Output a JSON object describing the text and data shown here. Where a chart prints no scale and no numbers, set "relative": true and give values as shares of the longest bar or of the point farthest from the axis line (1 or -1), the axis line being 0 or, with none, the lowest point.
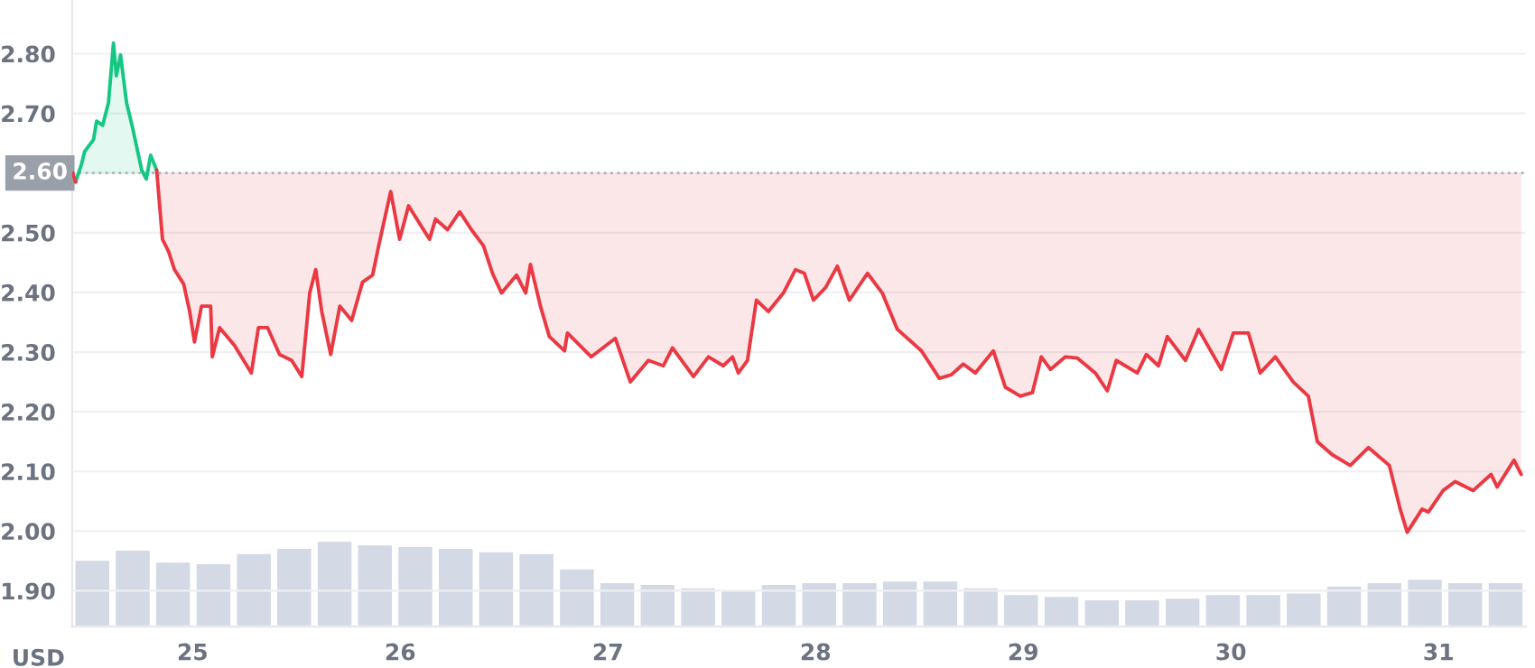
{
  "chart_data": [
    {
      "type": "line",
      "ylabel": "USD",
      "xlim": [
        24.42,
        31.42
      ],
      "ylim": [
        1.84,
        2.89
      ],
      "xticks": [
        25,
        26,
        27,
        28,
        29,
        30,
        31
      ],
      "yticks": [
        {
          "value": 1.9,
          "label": "1.90"
        },
        {
          "value": 2.0,
          "label": "2.00"
        },
        {
          "value": 2.1,
          "label": "2.10"
        },
        {
          "value": 2.2,
          "label": "2.20"
        },
        {
          "value": 2.3,
          "label": "2.30"
        },
        {
          "value": 2.4,
          "label": "2.40"
        },
        {
          "value": 2.5,
          "label": "2.50"
        },
        {
          "value": 2.6,
          "label": null
        },
        {
          "value": 2.7,
          "label": "2.70"
        },
        {
          "value": 2.8,
          "label": "2.80"
        }
      ],
      "grid": "y",
      "ref_lines": [
        {
          "axis": "y",
          "value": 2.6,
          "label": "2.60",
          "color": "#b0b4bc",
          "line_style": "dotted"
        }
      ],
      "series": [
        {
          "color": "#16c784",
          "x": [
            24.437,
            24.465,
            24.48,
            24.523,
            24.538,
            24.567,
            24.595,
            24.619,
            24.633,
            24.653,
            24.682,
            24.711,
            24.755,
            24.777,
            24.798,
            24.827
          ],
          "values": [
            2.585,
            2.615,
            2.636,
            2.656,
            2.687,
            2.68,
            2.718,
            2.818,
            2.763,
            2.798,
            2.718,
            2.676,
            2.605,
            2.59,
            2.63,
            2.605
          ]
        },
        {
          "color": "#ea3943",
          "x": [
            24.422,
            24.437,
            24.6,
            24.827,
            24.855,
            24.884,
            24.913,
            24.957,
            24.986,
            25.009,
            25.043,
            25.087,
            25.095,
            25.13,
            25.202,
            25.283,
            25.317,
            25.361,
            25.419,
            25.477,
            25.526,
            25.564,
            25.593,
            25.622,
            25.665,
            25.709,
            25.766,
            25.818,
            25.867,
            25.896,
            25.954,
            25.997,
            26.04,
            26.141,
            26.17,
            26.228,
            26.286,
            26.343,
            26.401,
            26.444,
            26.488,
            26.56,
            26.604,
            26.627,
            26.675,
            26.718,
            26.791,
            26.805,
            26.92,
            27.036,
            27.108,
            27.195,
            27.267,
            27.311,
            27.412,
            27.484,
            27.556,
            27.6,
            27.628,
            27.672,
            27.715,
            27.773,
            27.845,
            27.903,
            27.946,
            27.99,
            28.048,
            28.105,
            28.163,
            28.25,
            28.321,
            28.394,
            28.51,
            28.596,
            28.654,
            28.711,
            28.769,
            28.856,
            28.914,
            28.986,
            29.044,
            29.087,
            29.131,
            29.203,
            29.261,
            29.347,
            29.405,
            29.448,
            29.549,
            29.593,
            29.651,
            29.694,
            29.781,
            29.844,
            29.954,
            30.012,
            30.084,
            30.141,
            30.214,
            30.3,
            30.373,
            30.416,
            30.488,
            30.575,
            30.662,
            30.763,
            30.815,
            30.849,
            30.921,
            30.951,
            31.022,
            31.08,
            31.167,
            31.253,
            31.282,
            31.363,
            31.398
          ],
          "values": [
            2.6,
            2.585,
            null,
            2.605,
            2.489,
            2.469,
            2.438,
            2.414,
            2.368,
            2.317,
            2.377,
            2.377,
            2.292,
            2.341,
            2.311,
            2.265,
            2.341,
            2.341,
            2.296,
            2.286,
            2.259,
            2.399,
            2.438,
            2.368,
            2.296,
            2.377,
            2.353,
            2.417,
            2.429,
            2.478,
            2.569,
            2.489,
            2.545,
            2.489,
            2.523,
            2.505,
            2.535,
            2.505,
            2.478,
            2.432,
            2.399,
            2.429,
            2.399,
            2.447,
            2.377,
            2.326,
            2.302,
            2.332,
            2.292,
            2.323,
            2.25,
            2.286,
            2.277,
            2.307,
            2.259,
            2.292,
            2.277,
            2.292,
            2.265,
            2.286,
            2.387,
            2.368,
            2.399,
            2.438,
            2.432,
            2.387,
            2.408,
            2.444,
            2.387,
            2.432,
            2.399,
            2.338,
            2.302,
            2.256,
            2.262,
            2.28,
            2.265,
            2.302,
            2.241,
            2.226,
            2.232,
            2.292,
            2.271,
            2.292,
            2.29,
            2.265,
            2.235,
            2.286,
            2.265,
            2.296,
            2.277,
            2.326,
            2.286,
            2.338,
            2.271,
            2.332,
            2.332,
            2.265,
            2.292,
            2.25,
            2.226,
            2.15,
            2.128,
            2.11,
            2.14,
            2.11,
            2.037,
            1.998,
            2.037,
            2.032,
            2.068,
            2.083,
            2.068,
            2.095,
            2.074,
            2.119,
            2.095
          ]
        }
      ]
    },
    {
      "type": "bar",
      "relative": true,
      "tick_labels": false,
      "color": "#d3d9e5",
      "categories": [
        null,
        null,
        null,
        null,
        null,
        null,
        null,
        null,
        null,
        null,
        null,
        null,
        null,
        null,
        null,
        null,
        null,
        null,
        null,
        null,
        null,
        null,
        null,
        null,
        null,
        null,
        null,
        null,
        null,
        null,
        null,
        null,
        null,
        null,
        null,
        null
      ],
      "values": [
        0.78,
        0.9,
        0.76,
        0.74,
        0.86,
        0.92,
        1.0,
        0.96,
        0.94,
        0.92,
        0.88,
        0.86,
        0.68,
        0.52,
        0.5,
        0.46,
        0.44,
        0.5,
        0.52,
        0.52,
        0.54,
        0.54,
        0.46,
        0.38,
        0.36,
        0.32,
        0.32,
        0.34,
        0.38,
        0.38,
        0.4,
        0.48,
        0.52,
        0.56,
        0.52,
        0.52
      ]
    }
  ]
}
